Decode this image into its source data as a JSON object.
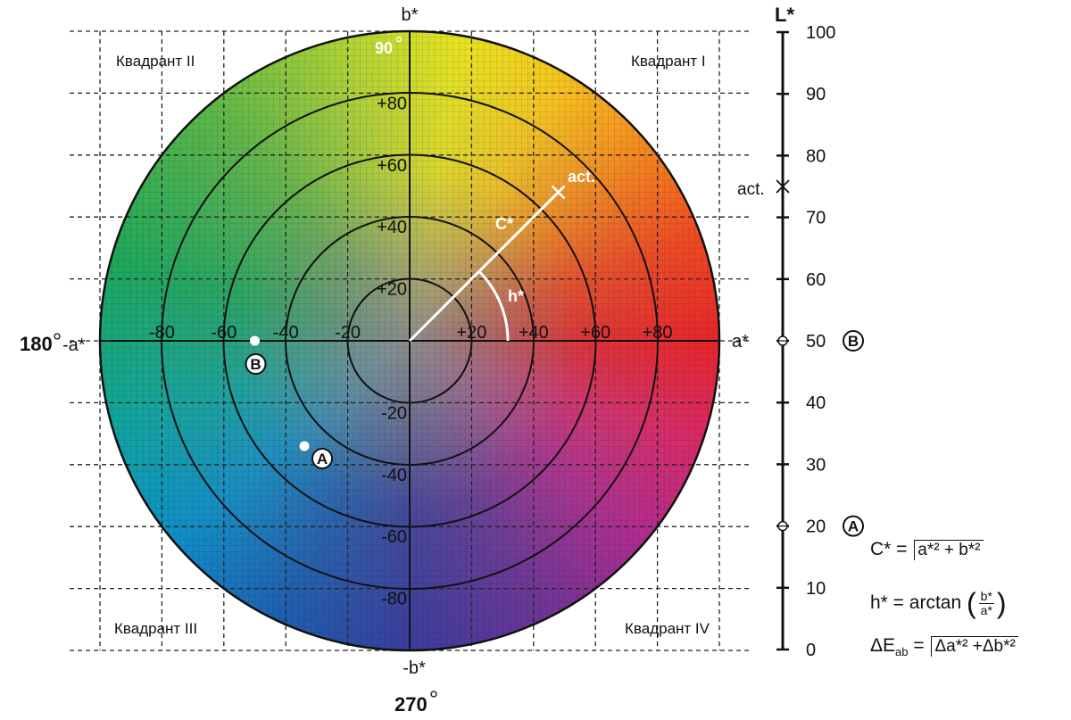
{
  "axes": {
    "b_pos": "b*",
    "b_neg": "-b*",
    "a_pos": "a*",
    "a_neg": "-a*",
    "angle_180": "180",
    "angle_270": "270",
    "angle_90": "90",
    "a_ticks": [
      "-80",
      "-60",
      "-40",
      "-20",
      "+20",
      "+40",
      "+60",
      "+80"
    ],
    "b_ticks": [
      "+80",
      "+60",
      "+40",
      "+20",
      "-20",
      "-40",
      "-60",
      "-80"
    ]
  },
  "quadrants": {
    "q1": "Квадрант I",
    "q2": "Квадрант II",
    "q3": "Квадрант III",
    "q4": "Квадрант IV"
  },
  "vector": {
    "act_label": "act.",
    "c_label": "C*",
    "h_label": "h*",
    "a": 48,
    "b": 48
  },
  "points": {
    "B": {
      "label": "B",
      "a": -50,
      "b": 0,
      "L": 50
    },
    "A": {
      "label": "A",
      "a": -34,
      "b": -34,
      "L": 20
    }
  },
  "lightness": {
    "title": "L*",
    "ticks": [
      "100",
      "90",
      "80",
      "70",
      "60",
      "50",
      "40",
      "30",
      "20",
      "10",
      "0"
    ],
    "act_label": "act.",
    "act_L": 75
  },
  "formulas": {
    "c_lhs": "C* =",
    "c_rhs": "a*² + b*²",
    "h_lhs": "h* = arctan",
    "h_num": "b*",
    "h_den": "a*",
    "de_lhs_main": "ΔE",
    "de_lhs_sub": "ab",
    "de_eq": "=",
    "de_rhs": "Δa*² +Δb*²"
  },
  "colors": {
    "grid": "#222222",
    "vector": "#ffffff"
  }
}
